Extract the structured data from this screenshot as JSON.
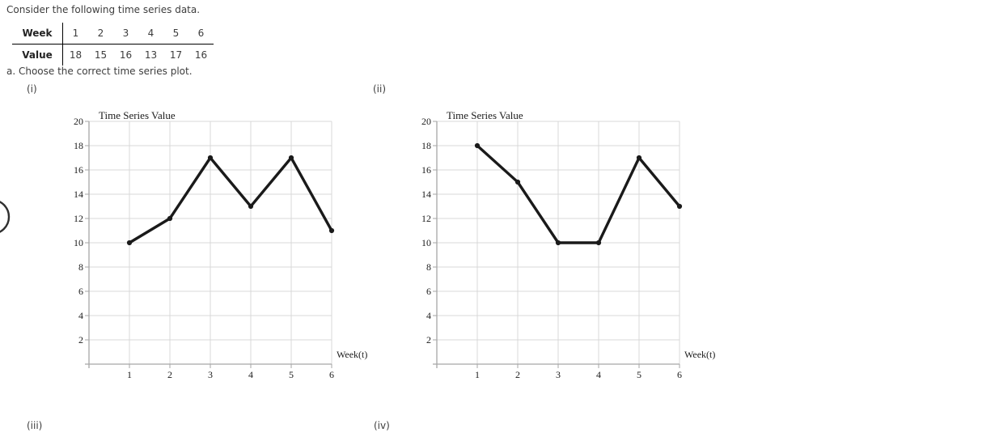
{
  "question": {
    "intro": "Consider the following time series data.",
    "prompt": "a. Choose the correct time series plot."
  },
  "table": {
    "row1_header": "Week",
    "row2_header": "Value",
    "weeks": [
      "1",
      "2",
      "3",
      "4",
      "5",
      "6"
    ],
    "values": [
      "18",
      "15",
      "16",
      "13",
      "17",
      "16"
    ]
  },
  "options": [
    {
      "label": "(i)"
    },
    {
      "label": "(ii)"
    },
    {
      "label": "(iii)"
    },
    {
      "label": "(iv)"
    }
  ],
  "chart_data": [
    {
      "option": "(i)",
      "type": "line",
      "title": "Time Series Value",
      "xlabel": "Week(t)",
      "ylabel": "",
      "x": [
        1,
        2,
        3,
        4,
        5,
        6
      ],
      "values": [
        10,
        12,
        17,
        13,
        17,
        11
      ],
      "xlim": [
        0,
        6
      ],
      "ylim": [
        0,
        20
      ],
      "xticks": [
        1,
        2,
        3,
        4,
        5,
        6
      ],
      "yticks": [
        2,
        4,
        6,
        8,
        10,
        12,
        14,
        16,
        18,
        20
      ],
      "grid": true,
      "legend": "none"
    },
    {
      "option": "(ii)",
      "type": "line",
      "title": "Time Series Value",
      "xlabel": "Week(t)",
      "ylabel": "",
      "x": [
        1,
        2,
        3,
        4,
        5,
        6
      ],
      "values": [
        18,
        15,
        10,
        10,
        17,
        13
      ],
      "xlim": [
        0,
        6
      ],
      "ylim": [
        0,
        20
      ],
      "xticks": [
        1,
        2,
        3,
        4,
        5,
        6
      ],
      "yticks": [
        2,
        4,
        6,
        8,
        10,
        12,
        14,
        16,
        18,
        20
      ],
      "grid": true,
      "legend": "none"
    }
  ],
  "theme": {
    "grid_color": "#d9d9d9",
    "axis_color": "#a6a6a6",
    "line_color": "#1a1a1a",
    "text_color": "#3d3d3d"
  }
}
